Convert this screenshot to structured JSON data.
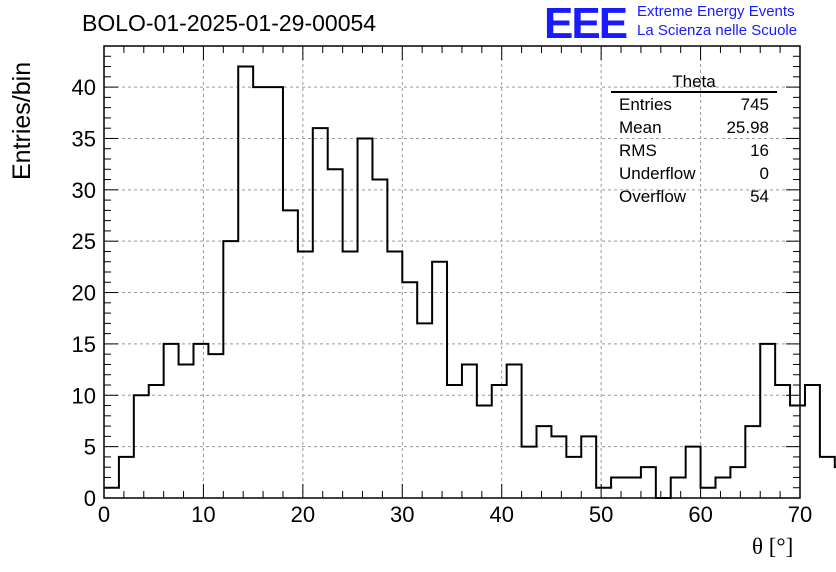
{
  "title": "BOLO-01-2025-01-29-00054",
  "logo": {
    "mark": "EEE",
    "line1": "Extreme Energy Events",
    "line2": "La Scienza nelle Scuole",
    "color": "#1a1aff"
  },
  "stats_box": {
    "name": "Theta",
    "rows": [
      {
        "label": "Entries",
        "value": "745"
      },
      {
        "label": "Mean",
        "value": "25.98"
      },
      {
        "label": "RMS",
        "value": "16"
      },
      {
        "label": "Underflow",
        "value": "0"
      },
      {
        "label": "Overflow",
        "value": "54"
      }
    ]
  },
  "chart_data": {
    "type": "bar",
    "style": "step-histogram",
    "xlabel": "θ [°]",
    "ylabel": "Entries/bin",
    "xlim": [
      0,
      70
    ],
    "ylim": [
      0,
      44
    ],
    "grid": true,
    "bin_width": 1.5,
    "bin_edges_start": 0,
    "xticks": [
      0,
      10,
      20,
      30,
      40,
      50,
      60,
      70
    ],
    "yticks": [
      0,
      5,
      10,
      15,
      20,
      25,
      30,
      35,
      40
    ],
    "values": [
      1,
      4,
      10,
      11,
      15,
      13,
      15,
      14,
      25,
      42,
      40,
      40,
      28,
      24,
      36,
      32,
      24,
      35,
      31,
      24,
      21,
      17,
      23,
      11,
      13,
      9,
      11,
      13,
      5,
      7,
      6,
      4,
      6,
      1,
      2,
      2,
      3,
      0,
      2,
      5,
      1,
      2,
      3,
      7,
      15,
      11,
      9,
      11,
      4,
      3
    ]
  }
}
